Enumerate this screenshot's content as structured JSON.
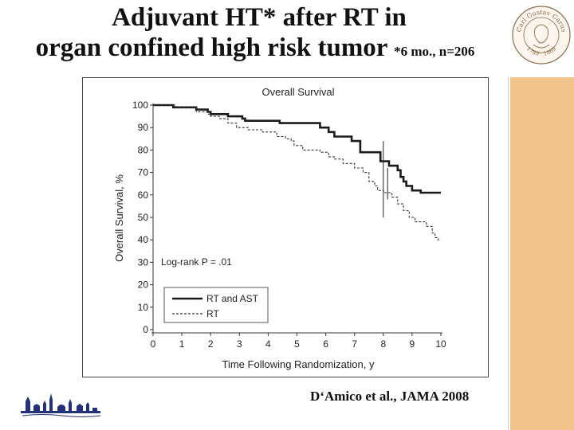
{
  "slide": {
    "title_line1": "Adjuvant HT* after RT in",
    "title_line2": "organ confined high risk tumor",
    "title_note": "*6 mo., n=206",
    "citation": "D‘Amico et al., JAMA 2008",
    "accent_color": "#f2c48b",
    "seal_text_top": "Carl Gustav Carus",
    "seal_text_bottom": "1789 · 1869"
  },
  "chart_data": {
    "type": "line",
    "title": "Overall Survival",
    "xlabel": "Time Following Randomization, y",
    "ylabel": "Overall Survival, %",
    "xlim": [
      0,
      10
    ],
    "ylim": [
      0,
      100
    ],
    "xticks": [
      0,
      1,
      2,
      3,
      4,
      5,
      6,
      7,
      8,
      9,
      10
    ],
    "yticks": [
      0,
      10,
      20,
      30,
      40,
      50,
      60,
      70,
      80,
      90,
      100
    ],
    "annotation": "Log-rank P = .01",
    "legend": "bottom-left",
    "series": [
      {
        "name": "RT and AST",
        "style": "solid",
        "color": "#1a1a1a",
        "step": [
          [
            0,
            100
          ],
          [
            0.7,
            99
          ],
          [
            1.5,
            98
          ],
          [
            1.9,
            97
          ],
          [
            2.0,
            96
          ],
          [
            2.6,
            95
          ],
          [
            3.1,
            94
          ],
          [
            3.2,
            93
          ],
          [
            4.4,
            92
          ],
          [
            5.8,
            90
          ],
          [
            6.1,
            88
          ],
          [
            6.3,
            86
          ],
          [
            6.9,
            84
          ],
          [
            7.2,
            79
          ],
          [
            7.9,
            75
          ],
          [
            8.2,
            73
          ],
          [
            8.5,
            71
          ],
          [
            8.6,
            68
          ],
          [
            8.7,
            66
          ],
          [
            8.8,
            64
          ],
          [
            9.0,
            62
          ],
          [
            9.3,
            61
          ],
          [
            10.0,
            61
          ]
        ]
      },
      {
        "name": "RT",
        "style": "dashed",
        "color": "#333333",
        "step": [
          [
            0,
            100
          ],
          [
            0.8,
            99
          ],
          [
            1.5,
            97
          ],
          [
            1.9,
            96
          ],
          [
            2.0,
            95
          ],
          [
            2.3,
            94
          ],
          [
            2.6,
            92
          ],
          [
            2.9,
            90
          ],
          [
            3.3,
            89
          ],
          [
            3.8,
            88
          ],
          [
            4.3,
            86
          ],
          [
            4.6,
            85
          ],
          [
            4.8,
            84
          ],
          [
            4.9,
            82
          ],
          [
            5.2,
            80
          ],
          [
            5.8,
            79
          ],
          [
            6.1,
            77
          ],
          [
            6.3,
            76
          ],
          [
            6.6,
            74
          ],
          [
            7.0,
            72
          ],
          [
            7.3,
            70
          ],
          [
            7.5,
            66
          ],
          [
            7.7,
            64
          ],
          [
            7.8,
            62
          ],
          [
            8.0,
            61
          ],
          [
            8.3,
            59
          ],
          [
            8.5,
            56
          ],
          [
            8.7,
            53
          ],
          [
            8.9,
            50
          ],
          [
            9.1,
            48
          ],
          [
            9.5,
            46
          ],
          [
            9.7,
            43
          ],
          [
            9.8,
            41
          ],
          [
            9.9,
            40
          ],
          [
            10.0,
            40
          ]
        ]
      }
    ]
  }
}
